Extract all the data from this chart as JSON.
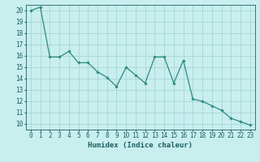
{
  "x": [
    0,
    1,
    2,
    3,
    4,
    5,
    6,
    7,
    8,
    9,
    10,
    11,
    12,
    13,
    14,
    15,
    16,
    17,
    18,
    19,
    20,
    21,
    22,
    23
  ],
  "y": [
    20.0,
    20.3,
    15.9,
    15.9,
    16.4,
    15.4,
    15.4,
    14.6,
    14.1,
    13.3,
    15.0,
    14.3,
    13.6,
    15.9,
    15.9,
    13.6,
    15.6,
    12.2,
    12.0,
    11.6,
    11.2,
    10.5,
    10.2,
    9.9
  ],
  "xlabel": "Humidex (Indice chaleur)",
  "xlim": [
    -0.5,
    23.5
  ],
  "ylim": [
    9.5,
    20.5
  ],
  "yticks": [
    10,
    11,
    12,
    13,
    14,
    15,
    16,
    17,
    18,
    19,
    20
  ],
  "xticks": [
    0,
    1,
    2,
    3,
    4,
    5,
    6,
    7,
    8,
    9,
    10,
    11,
    12,
    13,
    14,
    15,
    16,
    17,
    18,
    19,
    20,
    21,
    22,
    23
  ],
  "line_color": "#2e8b7a",
  "marker": "D",
  "marker_size": 1.8,
  "bg_color": "#c8eeee",
  "grid_color": "#aad4d4",
  "axis_label_color": "#1e5f5f",
  "tick_label_color": "#1e5f5f",
  "xlabel_fontsize": 6.5,
  "tick_fontsize": 5.5,
  "linewidth": 0.9
}
